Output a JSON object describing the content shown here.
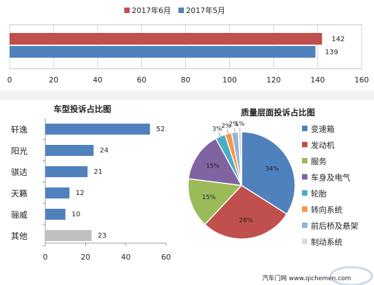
{
  "chart_data": [
    {
      "type": "bar",
      "orientation": "horizontal",
      "title": "",
      "legend_position": "top",
      "series": [
        {
          "name": "2017年6月",
          "values": [
            142
          ],
          "color": "#c0504d"
        },
        {
          "name": "2017年5月",
          "values": [
            139
          ],
          "color": "#4f81bd"
        }
      ],
      "xlim": [
        0,
        160
      ],
      "xticks": [
        0,
        20,
        40,
        60,
        80,
        100,
        120,
        140,
        160
      ],
      "grid": true
    },
    {
      "type": "bar",
      "orientation": "horizontal",
      "title": "车型投诉占比图",
      "categories": [
        "轩逸",
        "阳光",
        "骐达",
        "天籁",
        "骊威",
        "其他"
      ],
      "values": [
        52,
        24,
        21,
        12,
        10,
        23
      ],
      "colors": [
        "#4f81bd",
        "#4f81bd",
        "#4f81bd",
        "#4f81bd",
        "#4f81bd",
        "#c0c0c0"
      ],
      "xlim": [
        0,
        60
      ],
      "xticks": [
        0,
        20,
        40,
        60
      ],
      "grid": false
    },
    {
      "type": "pie",
      "title": "质量层面投诉占比图",
      "legend_position": "right",
      "categories": [
        "变速箱",
        "发动机",
        "服务",
        "车身及电气",
        "轮胎",
        "转向系统",
        "前后桥及悬架",
        "制动系统"
      ],
      "values": [
        34,
        28,
        15,
        15,
        3,
        2,
        2,
        1
      ],
      "labels": [
        "34%",
        "28%",
        "15%",
        "15%",
        "3%",
        "2%",
        "2%",
        "1%"
      ],
      "colors": [
        "#4f81bd",
        "#c0504d",
        "#9bbb59",
        "#8064a2",
        "#4bacc6",
        "#f79646",
        "#95b3d7",
        "#dcdcdc"
      ]
    }
  ],
  "footer": {
    "source": "汽车门网 www.qichemen.com"
  }
}
